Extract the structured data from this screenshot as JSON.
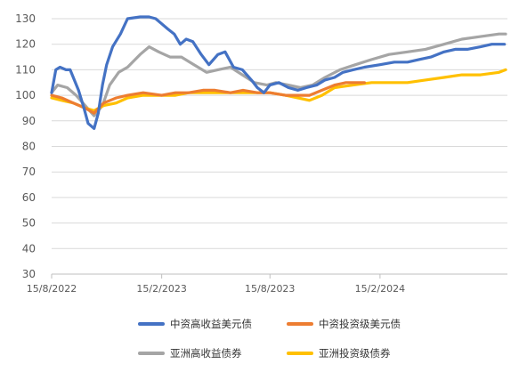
{
  "chart_data": {
    "type": "line",
    "ylim": [
      30,
      130
    ],
    "yticks": [
      30,
      40,
      50,
      60,
      70,
      80,
      90,
      100,
      110,
      120,
      130
    ],
    "xlim": [
      "2022-08-15",
      "2024-09-15"
    ],
    "xticks": [
      {
        "date": "2022-08-15",
        "label": "15/8/2022"
      },
      {
        "date": "2023-02-15",
        "label": "15/2/2023"
      },
      {
        "date": "2023-08-15",
        "label": "15/8/2023"
      },
      {
        "date": "2024-02-15",
        "label": "15/2/2024"
      }
    ],
    "grid": "horizontal",
    "legend_position": "bottom",
    "series": [
      {
        "name": "中资高收益美元债",
        "color": "#4472C4",
        "points": [
          [
            "2022-08-15",
            101
          ],
          [
            "2022-08-22",
            110
          ],
          [
            "2022-08-29",
            111
          ],
          [
            "2022-09-08",
            110
          ],
          [
            "2022-09-15",
            110
          ],
          [
            "2022-09-29",
            102
          ],
          [
            "2022-10-08",
            95
          ],
          [
            "2022-10-15",
            89
          ],
          [
            "2022-10-25",
            87
          ],
          [
            "2022-11-01",
            93
          ],
          [
            "2022-11-08",
            104
          ],
          [
            "2022-11-15",
            112
          ],
          [
            "2022-11-25",
            119
          ],
          [
            "2022-12-08",
            124
          ],
          [
            "2022-12-20",
            130
          ],
          [
            "2023-01-10",
            132
          ],
          [
            "2023-01-25",
            131
          ],
          [
            "2023-02-05",
            130
          ],
          [
            "2023-02-15",
            128
          ],
          [
            "2023-02-25",
            126
          ],
          [
            "2023-03-08",
            124
          ],
          [
            "2023-03-18",
            120
          ],
          [
            "2023-03-28",
            122
          ],
          [
            "2023-04-08",
            121
          ],
          [
            "2023-04-22",
            116
          ],
          [
            "2023-05-05",
            112
          ],
          [
            "2023-05-20",
            116
          ],
          [
            "2023-06-01",
            117
          ],
          [
            "2023-06-15",
            111
          ],
          [
            "2023-06-30",
            110
          ],
          [
            "2023-07-15",
            106
          ],
          [
            "2023-07-25",
            103
          ],
          [
            "2023-08-05",
            101
          ],
          [
            "2023-08-15",
            104
          ],
          [
            "2023-08-30",
            105
          ],
          [
            "2023-09-15",
            103
          ],
          [
            "2023-10-01",
            102
          ],
          [
            "2023-10-15",
            103
          ],
          [
            "2023-11-01",
            104
          ],
          [
            "2023-11-15",
            106
          ],
          [
            "2023-12-01",
            107
          ],
          [
            "2023-12-15",
            109
          ],
          [
            "2024-01-01",
            110
          ],
          [
            "2024-01-20",
            111
          ],
          [
            "2024-02-15",
            112
          ],
          [
            "2024-03-10",
            113
          ],
          [
            "2024-04-01",
            113
          ],
          [
            "2024-04-20",
            114
          ],
          [
            "2024-05-10",
            115
          ],
          [
            "2024-06-01",
            117
          ],
          [
            "2024-06-20",
            118
          ],
          [
            "2024-07-10",
            118
          ],
          [
            "2024-08-01",
            119
          ],
          [
            "2024-08-20",
            120
          ],
          [
            "2024-09-10",
            120
          ]
        ]
      },
      {
        "name": "中资投资级美元债",
        "color": "#ED7D31",
        "points": [
          [
            "2022-08-15",
            100
          ],
          [
            "2022-09-01",
            99
          ],
          [
            "2022-09-20",
            97
          ],
          [
            "2022-10-10",
            95
          ],
          [
            "2022-10-25",
            93
          ],
          [
            "2022-11-10",
            97
          ],
          [
            "2022-12-01",
            99
          ],
          [
            "2022-12-20",
            100
          ],
          [
            "2023-01-15",
            101
          ],
          [
            "2023-02-15",
            100
          ],
          [
            "2023-03-10",
            101
          ],
          [
            "2023-04-01",
            101
          ],
          [
            "2023-04-25",
            102
          ],
          [
            "2023-05-15",
            102
          ],
          [
            "2023-06-10",
            101
          ],
          [
            "2023-07-01",
            102
          ],
          [
            "2023-07-25",
            101
          ],
          [
            "2023-08-15",
            101
          ],
          [
            "2023-09-10",
            100
          ],
          [
            "2023-10-01",
            100
          ],
          [
            "2023-10-20",
            100
          ],
          [
            "2023-11-10",
            102
          ],
          [
            "2023-12-01",
            104
          ],
          [
            "2023-12-20",
            105
          ],
          [
            "2024-01-20",
            105
          ]
        ]
      },
      {
        "name": "亚洲高收益债券",
        "color": "#A5A5A5",
        "points": [
          [
            "2022-08-15",
            101
          ],
          [
            "2022-08-25",
            104
          ],
          [
            "2022-09-10",
            103
          ],
          [
            "2022-09-25",
            100
          ],
          [
            "2022-10-10",
            96
          ],
          [
            "2022-10-25",
            92
          ],
          [
            "2022-11-08",
            96
          ],
          [
            "2022-11-20",
            104
          ],
          [
            "2022-12-05",
            109
          ],
          [
            "2022-12-20",
            111
          ],
          [
            "2023-01-10",
            116
          ],
          [
            "2023-01-25",
            119
          ],
          [
            "2023-02-10",
            117
          ],
          [
            "2023-03-01",
            115
          ],
          [
            "2023-03-20",
            115
          ],
          [
            "2023-04-10",
            112
          ],
          [
            "2023-05-01",
            109
          ],
          [
            "2023-05-20",
            110
          ],
          [
            "2023-06-10",
            111
          ],
          [
            "2023-06-30",
            108
          ],
          [
            "2023-07-20",
            105
          ],
          [
            "2023-08-10",
            104
          ],
          [
            "2023-08-25",
            105
          ],
          [
            "2023-09-15",
            104
          ],
          [
            "2023-10-05",
            103
          ],
          [
            "2023-10-25",
            104
          ],
          [
            "2023-11-15",
            107
          ],
          [
            "2023-12-10",
            110
          ],
          [
            "2024-01-05",
            112
          ],
          [
            "2024-02-01",
            114
          ],
          [
            "2024-03-01",
            116
          ],
          [
            "2024-04-01",
            117
          ],
          [
            "2024-05-01",
            118
          ],
          [
            "2024-06-01",
            120
          ],
          [
            "2024-07-01",
            122
          ],
          [
            "2024-08-01",
            123
          ],
          [
            "2024-09-01",
            124
          ],
          [
            "2024-09-12",
            124
          ]
        ]
      },
      {
        "name": "亚洲投资级债券",
        "color": "#FFC000",
        "points": [
          [
            "2022-08-15",
            99
          ],
          [
            "2022-09-01",
            98
          ],
          [
            "2022-09-20",
            97
          ],
          [
            "2022-10-10",
            95
          ],
          [
            "2022-10-25",
            94
          ],
          [
            "2022-11-10",
            96
          ],
          [
            "2022-12-01",
            97
          ],
          [
            "2022-12-20",
            99
          ],
          [
            "2023-01-15",
            100
          ],
          [
            "2023-02-15",
            100
          ],
          [
            "2023-03-10",
            100
          ],
          [
            "2023-04-01",
            101
          ],
          [
            "2023-04-25",
            101
          ],
          [
            "2023-05-15",
            101
          ],
          [
            "2023-06-10",
            101
          ],
          [
            "2023-07-01",
            101
          ],
          [
            "2023-07-25",
            101
          ],
          [
            "2023-08-15",
            101
          ],
          [
            "2023-09-10",
            100
          ],
          [
            "2023-10-01",
            99
          ],
          [
            "2023-10-20",
            98
          ],
          [
            "2023-11-10",
            100
          ],
          [
            "2023-12-01",
            103
          ],
          [
            "2024-01-01",
            104
          ],
          [
            "2024-02-01",
            105
          ],
          [
            "2024-03-01",
            105
          ],
          [
            "2024-04-01",
            105
          ],
          [
            "2024-05-01",
            106
          ],
          [
            "2024-06-01",
            107
          ],
          [
            "2024-07-01",
            108
          ],
          [
            "2024-08-01",
            108
          ],
          [
            "2024-09-01",
            109
          ],
          [
            "2024-09-12",
            110
          ]
        ]
      }
    ]
  }
}
